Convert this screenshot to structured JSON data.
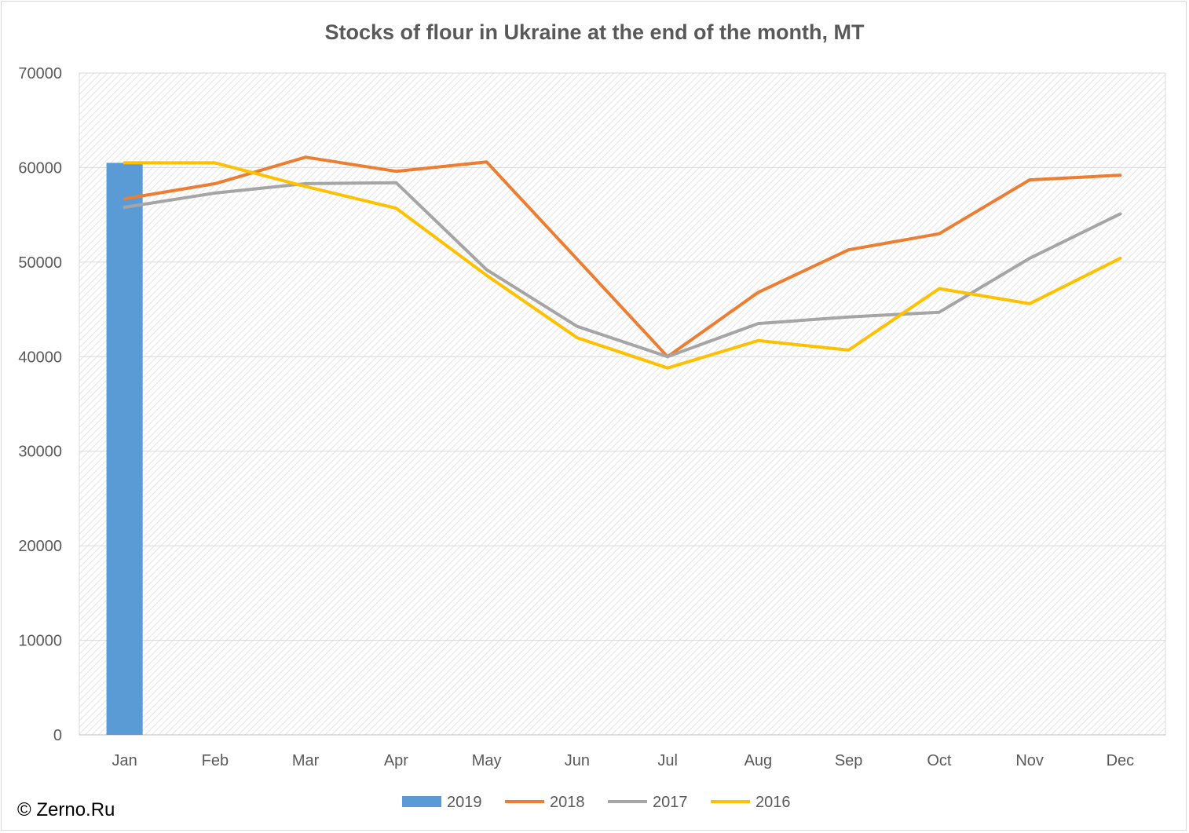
{
  "chart_data": {
    "type": "bar+line",
    "title": "Stocks of flour in Ukraine at the end of the month, MT",
    "categories": [
      "Jan",
      "Feb",
      "Mar",
      "Apr",
      "May",
      "Jun",
      "Jul",
      "Aug",
      "Sep",
      "Oct",
      "Nov",
      "Dec"
    ],
    "ylim": [
      0,
      70000
    ],
    "yticks": [
      "0",
      "10000",
      "20000",
      "30000",
      "40000",
      "50000",
      "60000",
      "70000"
    ],
    "grid": true,
    "legend_position": "bottom",
    "series": [
      {
        "name": "2019",
        "type": "bar",
        "color": "#5b9bd5",
        "values": [
          60500,
          null,
          null,
          null,
          null,
          null,
          null,
          null,
          null,
          null,
          null,
          null
        ]
      },
      {
        "name": "2018",
        "type": "line",
        "color": "#ed7d31",
        "values": [
          56700,
          58300,
          61100,
          59600,
          60600,
          50300,
          40000,
          46800,
          51300,
          53000,
          58700,
          59200
        ]
      },
      {
        "name": "2017",
        "type": "line",
        "color": "#a5a5a5",
        "values": [
          55800,
          57300,
          58300,
          58400,
          49200,
          43200,
          40000,
          43500,
          44200,
          44700,
          50400,
          55100
        ]
      },
      {
        "name": "2016",
        "type": "line",
        "color": "#ffc000",
        "values": [
          60500,
          60500,
          58000,
          55700,
          48600,
          42000,
          38800,
          41700,
          40700,
          47200,
          45600,
          50400
        ]
      }
    ]
  },
  "credit": "© Zerno.Ru"
}
